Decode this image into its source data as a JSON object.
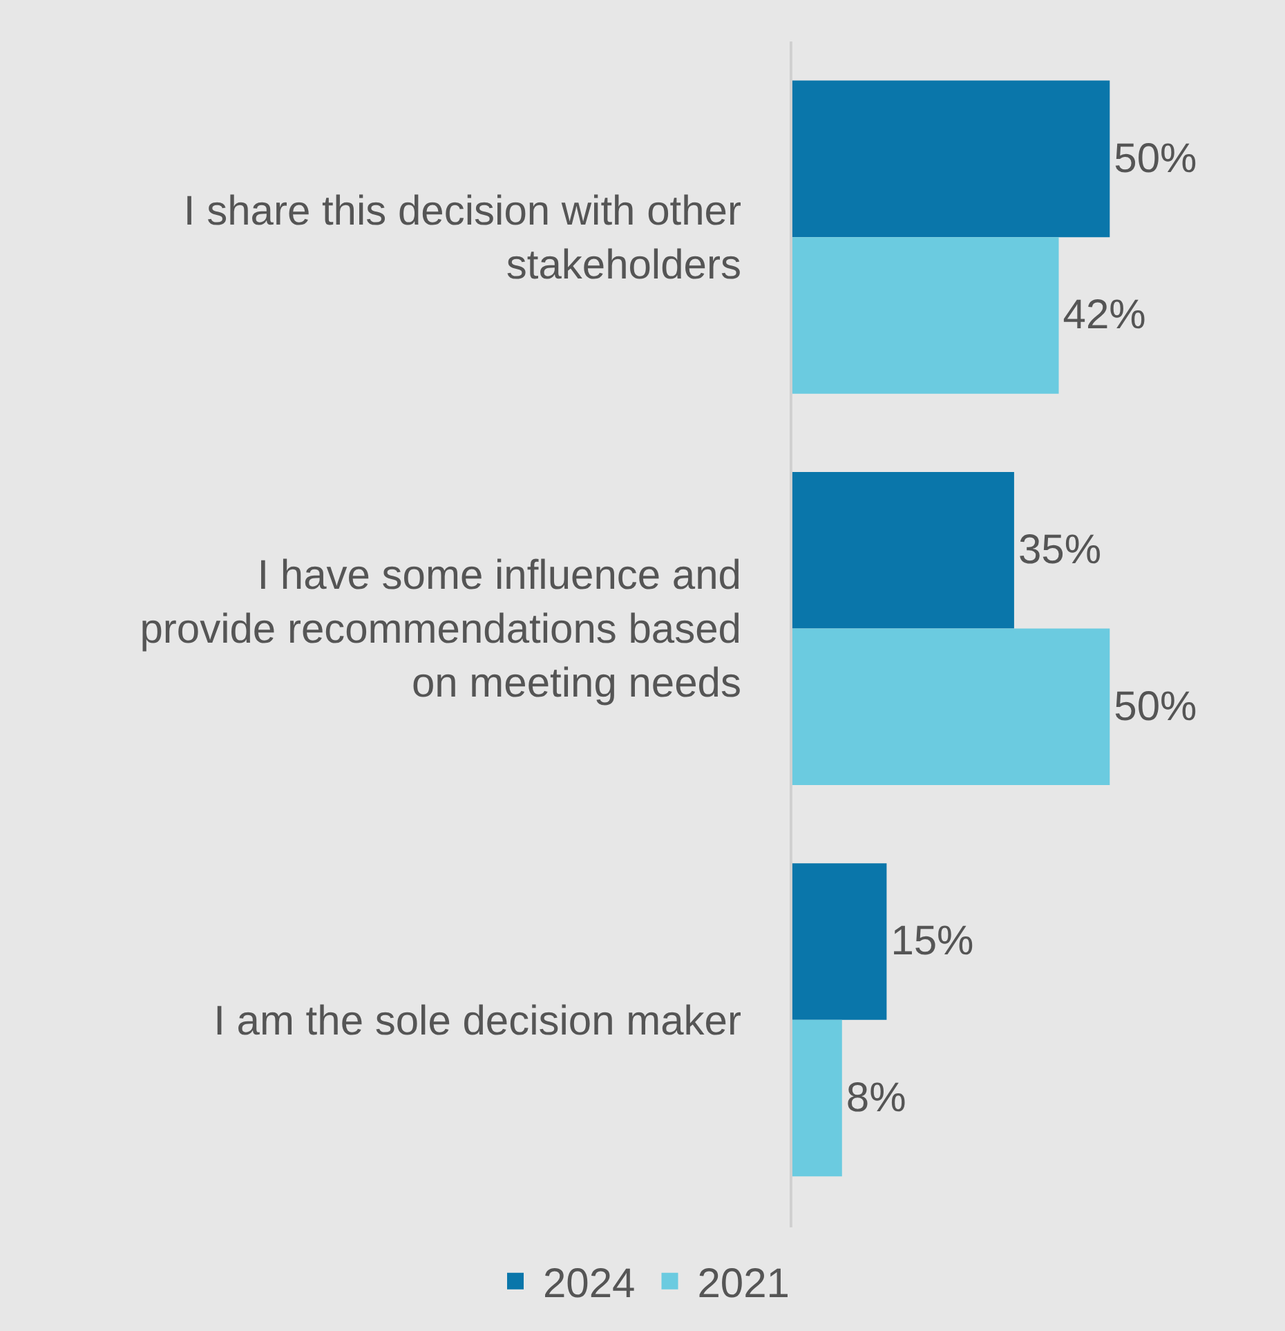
{
  "chart_data": {
    "type": "bar",
    "orientation": "horizontal",
    "tick_labels": "y",
    "categories": [
      "I share this decision with other\nstakeholders",
      "I have some influence and\nprovide recommendations based\non meeting needs",
      "I am the sole decision maker"
    ],
    "series": [
      {
        "name": "2024",
        "color": "#0a76aa",
        "values": [
          50,
          35,
          15
        ],
        "value_labels": [
          "50%",
          "35%",
          "15%"
        ]
      },
      {
        "name": "2021",
        "color": "#6bcbe0",
        "values": [
          42,
          50,
          8
        ],
        "value_labels": [
          "42%",
          "50%",
          "8%"
        ]
      }
    ],
    "legend": "bottom",
    "grid": false
  }
}
